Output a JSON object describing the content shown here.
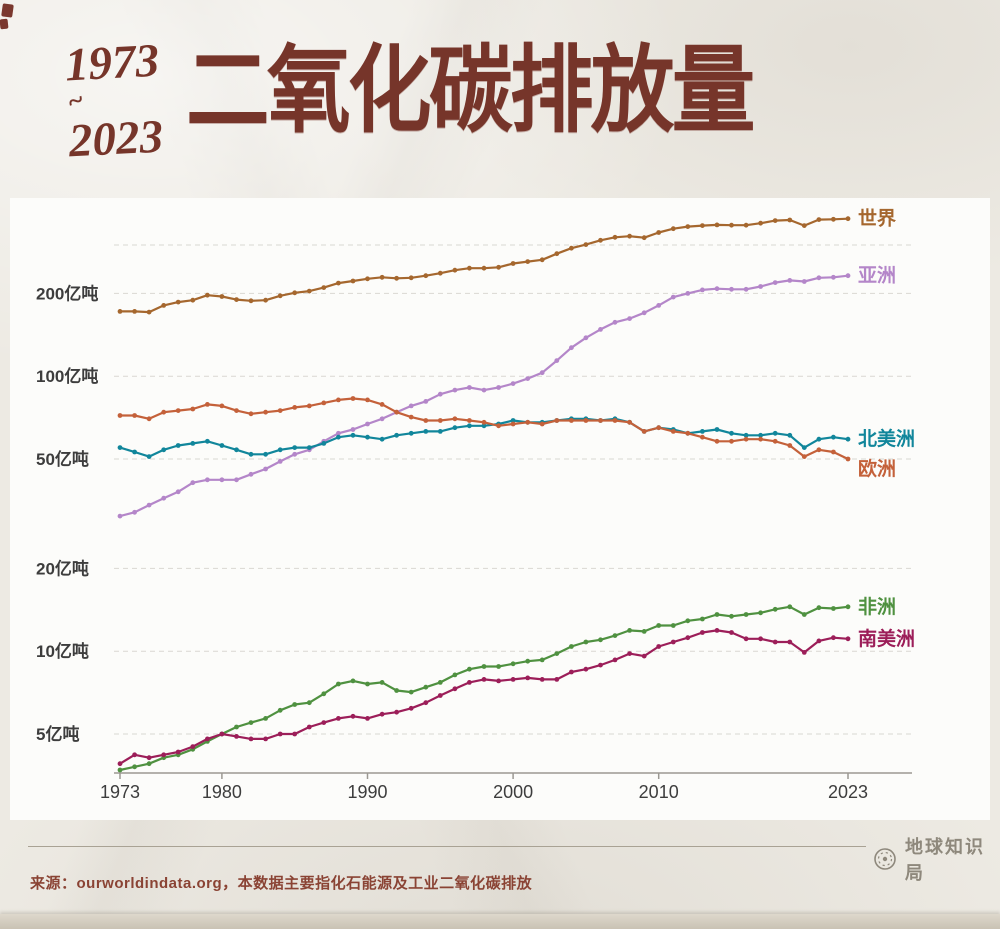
{
  "header": {
    "year_start": "1973",
    "tilde": "~",
    "year_end": "2023",
    "title": "二氧化碳排放量"
  },
  "footer": {
    "brand": "地球知识局",
    "source": "来源：ourworldindata.org，本数据主要指化石能源及工业二氧化碳排放"
  },
  "colors": {
    "title_brown": "#76352a",
    "source_text": "#8a4334",
    "brand_gray": "#8e887c",
    "paper_bg": "#edeae3",
    "panel_bg": "#fcfcfa"
  },
  "chart_data": {
    "type": "line",
    "title": "二氧化碳排放量",
    "unit": "亿吨",
    "y_scale": "log",
    "grid": true,
    "legend": "line-end-labels",
    "y_ticks": [
      {
        "value": 200,
        "label": "200亿吨"
      },
      {
        "value": 100,
        "label": "100亿吨"
      },
      {
        "value": 50,
        "label": "50亿吨"
      },
      {
        "value": 20,
        "label": "20亿吨"
      },
      {
        "value": 10,
        "label": "10亿吨"
      },
      {
        "value": 5,
        "label": "5亿吨"
      }
    ],
    "grid_values": [
      300,
      200,
      100,
      50,
      20,
      10,
      5
    ],
    "x_ticks": [
      {
        "year": 1973,
        "label": "1973"
      },
      {
        "year": 1980,
        "label": "1980"
      },
      {
        "year": 1990,
        "label": "1990"
      },
      {
        "year": 2000,
        "label": "2000"
      },
      {
        "year": 2010,
        "label": "2010"
      },
      {
        "year": 2023,
        "label": "2023"
      }
    ],
    "x_years": [
      1973,
      1974,
      1975,
      1976,
      1977,
      1978,
      1979,
      1980,
      1981,
      1982,
      1983,
      1984,
      1985,
      1986,
      1987,
      1988,
      1989,
      1990,
      1991,
      1992,
      1993,
      1994,
      1995,
      1996,
      1997,
      1998,
      1999,
      2000,
      2001,
      2002,
      2003,
      2004,
      2005,
      2006,
      2007,
      2008,
      2009,
      2010,
      2011,
      2012,
      2013,
      2014,
      2015,
      2016,
      2017,
      2018,
      2019,
      2020,
      2021,
      2022,
      2023
    ],
    "series": [
      {
        "id": "world",
        "label": "世界",
        "color": "#a5672e",
        "values": [
          172,
          172,
          171,
          181,
          186,
          189,
          197,
          195,
          190,
          188,
          189,
          196,
          201,
          204,
          210,
          218,
          222,
          226,
          229,
          227,
          228,
          232,
          237,
          243,
          247,
          247,
          249,
          257,
          261,
          265,
          279,
          292,
          301,
          312,
          320,
          323,
          319,
          333,
          344,
          350,
          353,
          355,
          354,
          354,
          360,
          368,
          370,
          353,
          371,
          372,
          374
        ]
      },
      {
        "id": "asia",
        "label": "亚洲",
        "color": "#b486c9",
        "values": [
          31,
          32,
          34,
          36,
          38,
          41,
          42,
          42,
          42,
          44,
          46,
          49,
          52,
          54,
          58,
          62,
          64,
          67,
          70,
          74,
          78,
          81,
          86,
          89,
          91,
          89,
          91,
          94,
          98,
          103,
          114,
          127,
          138,
          148,
          157,
          162,
          170,
          181,
          194,
          200,
          206,
          208,
          207,
          207,
          212,
          219,
          223,
          221,
          228,
          229,
          232
        ]
      },
      {
        "id": "north-america",
        "label": "北美洲",
        "color": "#11869b",
        "values": [
          55,
          53,
          51,
          54,
          56,
          57,
          58,
          56,
          54,
          52,
          52,
          54,
          55,
          55,
          57,
          60,
          61,
          60,
          59,
          61,
          62,
          63,
          63,
          65,
          66,
          66,
          67,
          69,
          68,
          68,
          69,
          70,
          70,
          69,
          70,
          68,
          63,
          65,
          64,
          62,
          63,
          64,
          62,
          61,
          61,
          62,
          61,
          55,
          59,
          60,
          59
        ]
      },
      {
        "id": "europe",
        "label": "欧洲",
        "color": "#c4613a",
        "values": [
          72,
          72,
          70,
          74,
          75,
          76,
          79,
          78,
          75,
          73,
          74,
          75,
          77,
          78,
          80,
          82,
          83,
          82,
          79,
          74,
          71,
          69,
          69,
          70,
          69,
          68,
          66,
          67,
          68,
          67,
          69,
          69,
          69,
          69,
          69,
          68,
          63,
          65,
          63,
          62,
          60,
          58,
          58,
          59,
          59,
          58,
          56,
          51,
          54,
          53,
          50
        ]
      },
      {
        "id": "africa",
        "label": "非洲",
        "color": "#4f9140",
        "values": [
          3.7,
          3.8,
          3.9,
          4.1,
          4.2,
          4.4,
          4.7,
          5.0,
          5.3,
          5.5,
          5.7,
          6.1,
          6.4,
          6.5,
          7.0,
          7.6,
          7.8,
          7.6,
          7.7,
          7.2,
          7.1,
          7.4,
          7.7,
          8.2,
          8.6,
          8.8,
          8.8,
          9.0,
          9.2,
          9.3,
          9.8,
          10.4,
          10.8,
          11.0,
          11.4,
          11.9,
          11.8,
          12.4,
          12.4,
          12.9,
          13.1,
          13.6,
          13.4,
          13.6,
          13.8,
          14.2,
          14.5,
          13.6,
          14.4,
          14.3,
          14.5
        ]
      },
      {
        "id": "south-america",
        "label": "南美洲",
        "color": "#9c1e59",
        "values": [
          3.9,
          4.2,
          4.1,
          4.2,
          4.3,
          4.5,
          4.8,
          5.0,
          4.9,
          4.8,
          4.8,
          5.0,
          5.0,
          5.3,
          5.5,
          5.7,
          5.8,
          5.7,
          5.9,
          6.0,
          6.2,
          6.5,
          6.9,
          7.3,
          7.7,
          7.9,
          7.8,
          7.9,
          8.0,
          7.9,
          7.9,
          8.4,
          8.6,
          8.9,
          9.3,
          9.8,
          9.6,
          10.4,
          10.8,
          11.2,
          11.7,
          11.9,
          11.7,
          11.1,
          11.1,
          10.8,
          10.8,
          9.9,
          10.9,
          11.2,
          11.1
        ]
      }
    ]
  }
}
